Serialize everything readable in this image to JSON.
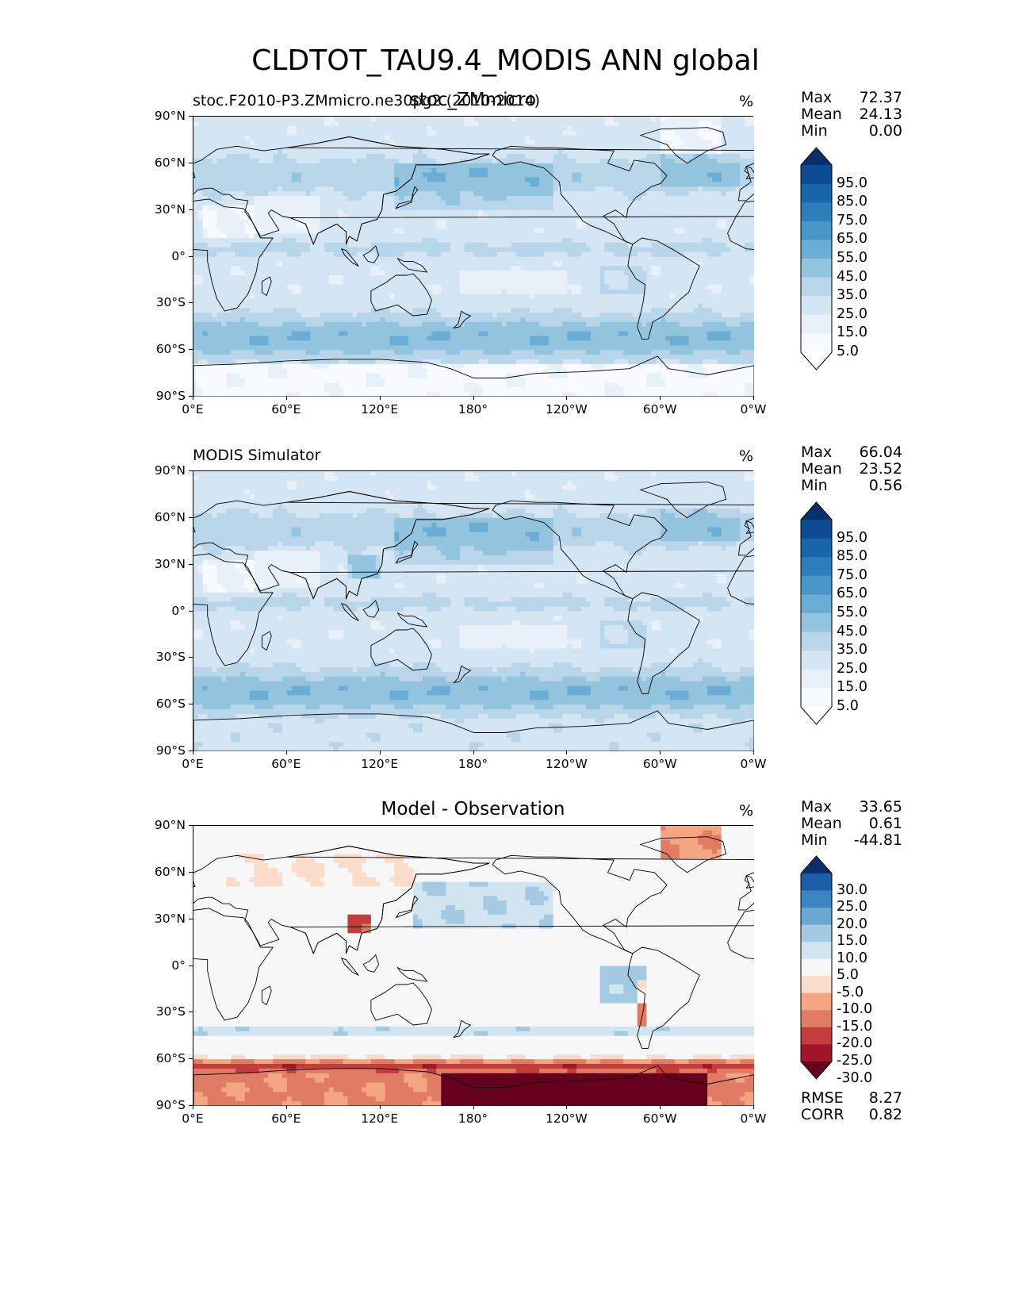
{
  "figure": {
    "title": "CLDTOT_TAU9.4_MODIS ANN global"
  },
  "panels": [
    {
      "id": "test",
      "left_title": "stoc.F2010-P3.ZMmicro.ne30pg2 (2010-2014)",
      "center_title": "stoc_ZMmicro",
      "units": "%",
      "stats": {
        "max_label": "Max",
        "max": "72.37",
        "mean_label": "Mean",
        "mean": "24.13",
        "min_label": "Min",
        "min": "0.00"
      },
      "colorbar": {
        "colormap": "Blues",
        "levels": [
          "95.0",
          "85.0",
          "75.0",
          "65.0",
          "55.0",
          "45.0",
          "35.0",
          "25.0",
          "15.0",
          "5.0"
        ],
        "colors": [
          "#08306b",
          "#0b4a94",
          "#1865ac",
          "#2f7ebc",
          "#4896c8",
          "#6aadd5",
          "#93c4de",
          "#b8d5ea",
          "#d4e5f4",
          "#e8f1fa",
          "#f7fbff",
          "#ffffff"
        ]
      }
    },
    {
      "id": "reference",
      "left_title": "MODIS Simulator",
      "center_title": "",
      "units": "%",
      "stats": {
        "max_label": "Max",
        "max": "66.04",
        "mean_label": "Mean",
        "mean": "23.52",
        "min_label": "Min",
        "min": "0.56"
      },
      "colorbar": {
        "colormap": "Blues",
        "levels": [
          "95.0",
          "85.0",
          "75.0",
          "65.0",
          "55.0",
          "45.0",
          "35.0",
          "25.0",
          "15.0",
          "5.0"
        ],
        "colors": [
          "#08306b",
          "#0b4a94",
          "#1865ac",
          "#2f7ebc",
          "#4896c8",
          "#6aadd5",
          "#93c4de",
          "#b8d5ea",
          "#d4e5f4",
          "#e8f1fa",
          "#f7fbff",
          "#ffffff"
        ]
      }
    },
    {
      "id": "difference",
      "left_title": "",
      "center_title": "Model - Observation",
      "units": "%",
      "stats": {
        "max_label": "Max",
        "max": "33.65",
        "mean_label": "Mean",
        "mean": "0.61",
        "min_label": "Min",
        "min": "-44.81"
      },
      "metrics": {
        "rmse_label": "RMSE",
        "rmse": "8.27",
        "corr_label": "CORR",
        "corr": "0.82"
      },
      "colorbar": {
        "colormap": "RdBu",
        "levels": [
          "30.0",
          "25.0",
          "20.0",
          "15.0",
          "10.0",
          "5.0",
          "-5.0",
          "-10.0",
          "-15.0",
          "-20.0",
          "-25.0",
          "-30.0"
        ],
        "colors": [
          "#08306b",
          "#1c5ea8",
          "#3a84c0",
          "#6aa8d2",
          "#a3cae2",
          "#d1e5f0",
          "#f7f7f7",
          "#fbdbc9",
          "#f4a582",
          "#e07b64",
          "#c43c3c",
          "#a01628",
          "#67001f"
        ]
      }
    }
  ],
  "axes": {
    "lat_ticks": [
      "90°N",
      "60°N",
      "30°N",
      "0°",
      "30°S",
      "60°S",
      "90°S"
    ],
    "lon_ticks": [
      "0°E",
      "60°E",
      "120°E",
      "180°",
      "120°W",
      "60°W",
      "0°W"
    ]
  }
}
